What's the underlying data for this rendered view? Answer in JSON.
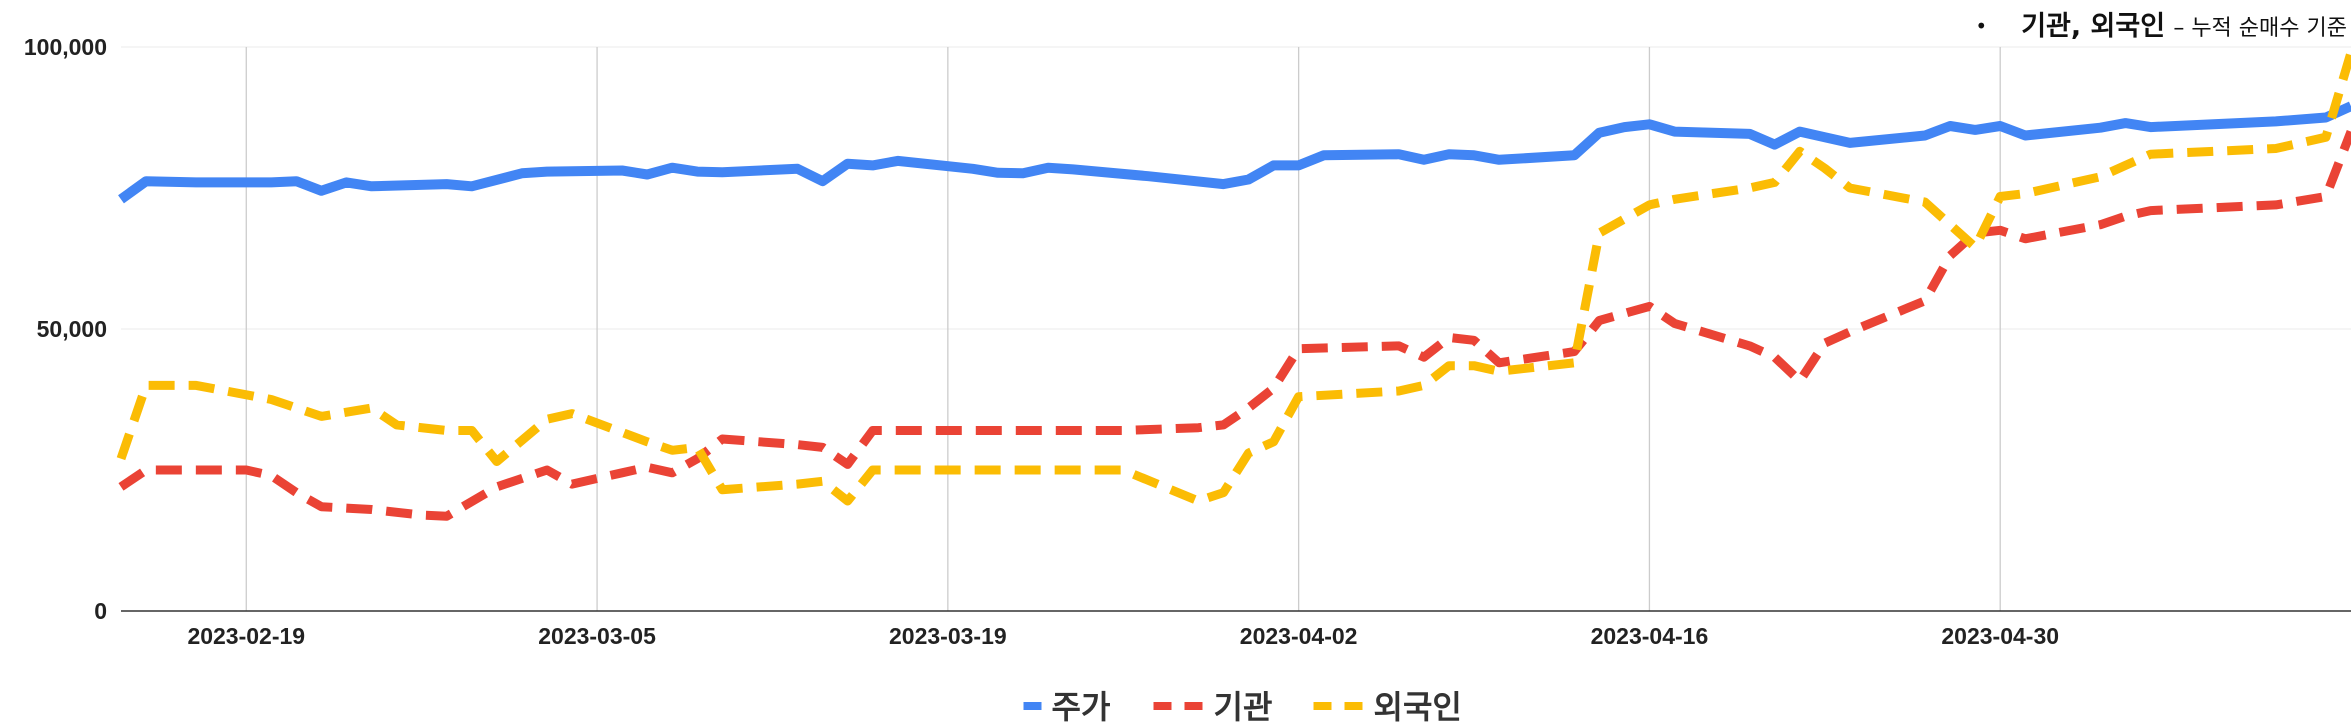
{
  "note": {
    "bullet": "•",
    "emphasis": "기관, 외국인",
    "rest": "– 누적 순매수 기준"
  },
  "chart_data": {
    "type": "line",
    "x_start": "2023-02-14",
    "x_end": "2023-05-14",
    "ylim": [
      0,
      100000
    ],
    "yticks": [
      "0",
      "50,000",
      "100,000"
    ],
    "xticks": [
      "2023-02-19",
      "2023-03-05",
      "2023-03-19",
      "2023-04-02",
      "2023-04-16",
      "2023-04-30"
    ],
    "legend_position": "bottom",
    "grid": true,
    "series": [
      {
        "name": "주가",
        "color": "#4285F4",
        "style": "solid",
        "points": [
          [
            "2023-02-14",
            73000
          ],
          [
            "2023-02-15",
            76200
          ],
          [
            "2023-02-17",
            76000
          ],
          [
            "2023-02-19",
            76000
          ],
          [
            "2023-02-20",
            76000
          ],
          [
            "2023-02-21",
            76200
          ],
          [
            "2023-02-22",
            74500
          ],
          [
            "2023-02-23",
            76000
          ],
          [
            "2023-02-24",
            75300
          ],
          [
            "2023-02-27",
            75700
          ],
          [
            "2023-02-28",
            75300
          ],
          [
            "2023-03-02",
            77600
          ],
          [
            "2023-03-03",
            77900
          ],
          [
            "2023-03-06",
            78100
          ],
          [
            "2023-03-07",
            77400
          ],
          [
            "2023-03-08",
            78600
          ],
          [
            "2023-03-09",
            77900
          ],
          [
            "2023-03-10",
            77800
          ],
          [
            "2023-03-13",
            78400
          ],
          [
            "2023-03-14",
            76200
          ],
          [
            "2023-03-15",
            79300
          ],
          [
            "2023-03-16",
            79000
          ],
          [
            "2023-03-17",
            79800
          ],
          [
            "2023-03-20",
            78400
          ],
          [
            "2023-03-21",
            77700
          ],
          [
            "2023-03-22",
            77600
          ],
          [
            "2023-03-23",
            78600
          ],
          [
            "2023-03-24",
            78300
          ],
          [
            "2023-03-27",
            77100
          ],
          [
            "2023-03-30",
            75700
          ],
          [
            "2023-03-31",
            76500
          ],
          [
            "2023-04-01",
            79000
          ],
          [
            "2023-04-02",
            79000
          ],
          [
            "2023-04-03",
            80800
          ],
          [
            "2023-04-06",
            81000
          ],
          [
            "2023-04-07",
            80000
          ],
          [
            "2023-04-08",
            81000
          ],
          [
            "2023-04-09",
            80800
          ],
          [
            "2023-04-10",
            80000
          ],
          [
            "2023-04-13",
            80800
          ],
          [
            "2023-04-14",
            84800
          ],
          [
            "2023-04-15",
            85800
          ],
          [
            "2023-04-16",
            86300
          ],
          [
            "2023-04-17",
            85000
          ],
          [
            "2023-04-20",
            84600
          ],
          [
            "2023-04-21",
            82700
          ],
          [
            "2023-04-22",
            85000
          ],
          [
            "2023-04-23",
            84000
          ],
          [
            "2023-04-24",
            83000
          ],
          [
            "2023-04-27",
            84300
          ],
          [
            "2023-04-28",
            86000
          ],
          [
            "2023-04-29",
            85300
          ],
          [
            "2023-04-30",
            86000
          ],
          [
            "2023-05-01",
            84300
          ],
          [
            "2023-05-04",
            85700
          ],
          [
            "2023-05-05",
            86500
          ],
          [
            "2023-05-06",
            85800
          ],
          [
            "2023-05-11",
            86800
          ],
          [
            "2023-05-13",
            87500
          ],
          [
            "2023-05-14",
            89500
          ]
        ]
      },
      {
        "name": "기관",
        "color": "#EA4335",
        "style": "dashed",
        "points": [
          [
            "2023-02-14",
            22000
          ],
          [
            "2023-02-15",
            25000
          ],
          [
            "2023-02-19",
            25000
          ],
          [
            "2023-02-20",
            24000
          ],
          [
            "2023-02-21",
            21000
          ],
          [
            "2023-02-22",
            18500
          ],
          [
            "2023-02-24",
            18000
          ],
          [
            "2023-02-26",
            17000
          ],
          [
            "2023-02-27",
            16800
          ],
          [
            "2023-03-01",
            22000
          ],
          [
            "2023-03-03",
            25000
          ],
          [
            "2023-03-04",
            22500
          ],
          [
            "2023-03-06",
            24500
          ],
          [
            "2023-03-07",
            25500
          ],
          [
            "2023-03-08",
            24500
          ],
          [
            "2023-03-09",
            27000
          ],
          [
            "2023-03-10",
            30500
          ],
          [
            "2023-03-13",
            29500
          ],
          [
            "2023-03-14",
            29000
          ],
          [
            "2023-03-15",
            26000
          ],
          [
            "2023-03-16",
            32000
          ],
          [
            "2023-03-19",
            32000
          ],
          [
            "2023-03-26",
            32000
          ],
          [
            "2023-03-29",
            32500
          ],
          [
            "2023-03-30",
            33000
          ],
          [
            "2023-03-31",
            36000
          ],
          [
            "2023-04-01",
            39500
          ],
          [
            "2023-04-02",
            46500
          ],
          [
            "2023-04-06",
            47000
          ],
          [
            "2023-04-07",
            45000
          ],
          [
            "2023-04-08",
            48500
          ],
          [
            "2023-04-09",
            48000
          ],
          [
            "2023-04-10",
            44000
          ],
          [
            "2023-04-13",
            46000
          ],
          [
            "2023-04-14",
            51500
          ],
          [
            "2023-04-16",
            54000
          ],
          [
            "2023-04-17",
            51000
          ],
          [
            "2023-04-20",
            47000
          ],
          [
            "2023-04-21",
            45000
          ],
          [
            "2023-04-22",
            40800
          ],
          [
            "2023-04-23",
            47500
          ],
          [
            "2023-04-24",
            49500
          ],
          [
            "2023-04-27",
            55000
          ],
          [
            "2023-04-28",
            63000
          ],
          [
            "2023-04-29",
            67000
          ],
          [
            "2023-04-30",
            67500
          ],
          [
            "2023-05-01",
            66000
          ],
          [
            "2023-05-04",
            68500
          ],
          [
            "2023-05-05",
            70000
          ],
          [
            "2023-05-06",
            71000
          ],
          [
            "2023-05-11",
            72000
          ],
          [
            "2023-05-13",
            73500
          ],
          [
            "2023-05-14",
            85000
          ]
        ]
      },
      {
        "name": "외국인",
        "color": "#FBBC04",
        "style": "dashed",
        "points": [
          [
            "2023-02-14",
            27000
          ],
          [
            "2023-02-15",
            40000
          ],
          [
            "2023-02-17",
            40000
          ],
          [
            "2023-02-20",
            37500
          ],
          [
            "2023-02-22",
            34500
          ],
          [
            "2023-02-24",
            36000
          ],
          [
            "2023-02-25",
            33000
          ],
          [
            "2023-02-27",
            32000
          ],
          [
            "2023-02-28",
            32000
          ],
          [
            "2023-03-01",
            26500
          ],
          [
            "2023-03-03",
            34000
          ],
          [
            "2023-03-04",
            35000
          ],
          [
            "2023-03-07",
            30000
          ],
          [
            "2023-03-08",
            28500
          ],
          [
            "2023-03-09",
            29000
          ],
          [
            "2023-03-10",
            21500
          ],
          [
            "2023-03-13",
            22500
          ],
          [
            "2023-03-14",
            23000
          ],
          [
            "2023-03-15",
            19500
          ],
          [
            "2023-03-16",
            25000
          ],
          [
            "2023-03-19",
            25000
          ],
          [
            "2023-03-23",
            25000
          ],
          [
            "2023-03-26",
            25000
          ],
          [
            "2023-03-29",
            19500
          ],
          [
            "2023-03-30",
            21000
          ],
          [
            "2023-03-31",
            28000
          ],
          [
            "2023-04-01",
            30000
          ],
          [
            "2023-04-02",
            38000
          ],
          [
            "2023-04-06",
            39000
          ],
          [
            "2023-04-07",
            40000
          ],
          [
            "2023-04-08",
            43500
          ],
          [
            "2023-04-09",
            43500
          ],
          [
            "2023-04-10",
            42500
          ],
          [
            "2023-04-13",
            44000
          ],
          [
            "2023-04-14",
            67000
          ],
          [
            "2023-04-15",
            69500
          ],
          [
            "2023-04-16",
            72000
          ],
          [
            "2023-04-17",
            73000
          ],
          [
            "2023-04-20",
            75000
          ],
          [
            "2023-04-21",
            76000
          ],
          [
            "2023-04-22",
            81500
          ],
          [
            "2023-04-23",
            78500
          ],
          [
            "2023-04-24",
            75000
          ],
          [
            "2023-04-27",
            72500
          ],
          [
            "2023-04-28",
            68500
          ],
          [
            "2023-04-29",
            64500
          ],
          [
            "2023-04-30",
            73500
          ],
          [
            "2023-05-01",
            74000
          ],
          [
            "2023-05-04",
            77000
          ],
          [
            "2023-05-05",
            79000
          ],
          [
            "2023-05-06",
            81000
          ],
          [
            "2023-05-11",
            82000
          ],
          [
            "2023-05-13",
            84000
          ],
          [
            "2023-05-14",
            99000
          ]
        ]
      }
    ]
  }
}
